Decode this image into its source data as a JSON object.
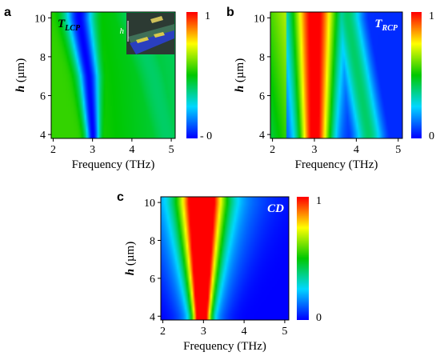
{
  "figure": {
    "colorscale": [
      "#0000ff",
      "#00d8ff",
      "#00c800",
      "#ffff00",
      "#ff0000"
    ],
    "panels": [
      {
        "letter": "a",
        "heatmap_label": "T",
        "heatmap_label_sub": "LCP",
        "label_color": "#000000",
        "has_inset": true,
        "xlabel": "Frequency (THz)",
        "ylabel_italic": "h",
        "ylabel_unit": " (µm)",
        "colorbar_ticks": [
          "1",
          "- 0"
        ]
      },
      {
        "letter": "b",
        "heatmap_label": "T",
        "heatmap_label_sub": "RCP",
        "label_color": "#ffffff",
        "has_inset": false,
        "xlabel": "Frequency (THz)",
        "ylabel_italic": "h",
        "ylabel_unit": " (µm)",
        "colorbar_ticks": [
          "1",
          "0"
        ]
      },
      {
        "letter": "c",
        "heatmap_label": "CD",
        "heatmap_label_sub": "",
        "label_color": "#ffffff",
        "has_inset": false,
        "xlabel": "Frequency (THz)",
        "ylabel_italic": "h",
        "ylabel_unit": " (µm)",
        "colorbar_ticks": [
          "1",
          "0"
        ]
      }
    ],
    "inset": {
      "label": "h"
    }
  },
  "chart_data": [
    {
      "type": "heatmap",
      "title": "T_LCP",
      "xlabel": "Frequency (THz)",
      "ylabel": "h (µm)",
      "x_ticks": [
        "2",
        "3",
        "4",
        "5"
      ],
      "y_ticks": [
        "4",
        "6",
        "8",
        "10"
      ],
      "xlim": [
        1.95,
        5.1
      ],
      "ylim": [
        3.8,
        10.3
      ],
      "colorbar_range": [
        0,
        1
      ],
      "background_value": 0.55,
      "dip_frequency_at_h": [
        [
          4,
          3.0
        ],
        [
          7,
          2.9
        ],
        [
          10,
          2.65
        ]
      ],
      "dip_depth": 0.55,
      "dip_width_thz": 0.3,
      "right_region_value": 0.45
    },
    {
      "type": "heatmap",
      "title": "T_RCP",
      "xlabel": "Frequency (THz)",
      "ylabel": "h (µm)",
      "x_ticks": [
        "2",
        "3",
        "4",
        "5"
      ],
      "y_ticks": [
        "4",
        "6",
        "8",
        "10"
      ],
      "xlim": [
        1.95,
        5.1
      ],
      "ylim": [
        3.8,
        10.3
      ],
      "colorbar_range": [
        0,
        1
      ],
      "peak_frequency_thz": 3.0,
      "peak_value": 1.0,
      "peak_width_thz": 0.55,
      "secondary_ridge_frequency_at_h": [
        [
          4,
          4.3
        ],
        [
          10,
          3.8
        ]
      ],
      "secondary_ridge_value": 0.4
    },
    {
      "type": "heatmap",
      "title": "CD",
      "xlabel": "Frequency (THz)",
      "ylabel": "h (µm)",
      "x_ticks": [
        "2",
        "3",
        "4",
        "5"
      ],
      "y_ticks": [
        "4",
        "6",
        "8",
        "10"
      ],
      "xlim": [
        1.95,
        5.1
      ],
      "ylim": [
        3.8,
        10.3
      ],
      "colorbar_range": [
        0,
        1
      ],
      "peak_frequency_thz": 2.95,
      "peak_value": 1.0,
      "peak_width_at_h": [
        [
          4,
          0.22
        ],
        [
          10,
          0.55
        ]
      ]
    }
  ]
}
